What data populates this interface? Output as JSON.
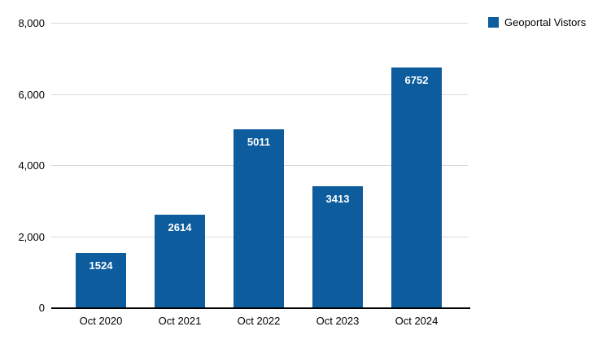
{
  "chart_data": {
    "type": "bar",
    "title": "",
    "xlabel": "",
    "ylabel": "",
    "categories": [
      "Oct 2020",
      "Oct 2021",
      "Oct 2022",
      "Oct 2023",
      "Oct 2024"
    ],
    "series": [
      {
        "name": "Geoportal Vistors",
        "color": "#0d5c9d",
        "values": [
          1524,
          2614,
          5011,
          3413,
          6752
        ]
      }
    ],
    "value_labels": [
      "1524",
      "2614",
      "5011",
      "3413",
      "6752"
    ],
    "ylim": [
      0,
      8000
    ],
    "yticks": [
      {
        "value": 0,
        "label": "0"
      },
      {
        "value": 2000,
        "label": "2,000"
      },
      {
        "value": 4000,
        "label": "4,000"
      },
      {
        "value": 6000,
        "label": "6,000"
      },
      {
        "value": 8000,
        "label": "8,000"
      }
    ],
    "grid": true,
    "legend_position": "top-right",
    "colors": {
      "bar": "#0d5c9d",
      "gridline": "#d9d9d9",
      "axis_line": "#000000",
      "value_label": "#ffffff",
      "tick_label": "#000000",
      "background": "#ffffff"
    }
  },
  "legend": {
    "label": "Geoportal Vistors",
    "swatch_color": "#0d5c9d"
  }
}
